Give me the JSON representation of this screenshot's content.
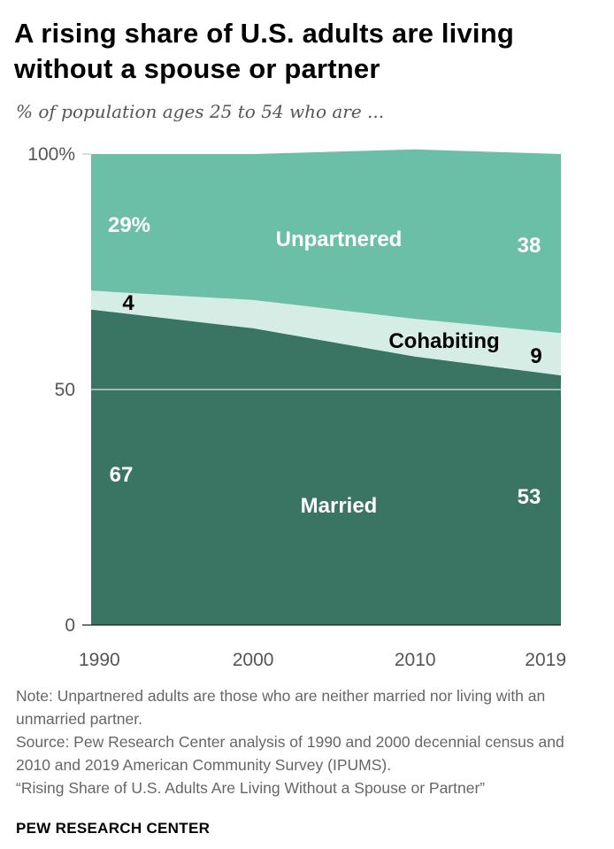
{
  "title": "A rising share of U.S. adults are living without a spouse or partner",
  "subtitle": "% of population  ages 25 to 54 who are ...",
  "colors": {
    "married": "#3a7563",
    "cohabiting": "#d5ede4",
    "unpartnered": "#6bbfa7",
    "axis_text": "#555555",
    "label_dark": "#000000",
    "label_light": "#ffffff"
  },
  "chart_data": {
    "type": "area",
    "stacked": true,
    "x": [
      1990,
      2000,
      2010,
      2019
    ],
    "x_tick_labels": [
      "1990",
      "2000",
      "2010",
      "2019"
    ],
    "y_ticks": [
      0,
      50,
      100
    ],
    "y_tick_labels": [
      "0",
      "50",
      "100%"
    ],
    "ylim": [
      0,
      100
    ],
    "series": [
      {
        "name": "Married",
        "values": [
          67,
          63,
          57,
          53
        ]
      },
      {
        "name": "Cohabiting",
        "values": [
          4,
          6,
          8,
          9
        ]
      },
      {
        "name": "Unpartnered",
        "values": [
          29,
          31,
          36,
          38
        ]
      }
    ],
    "labels": {
      "married_series": "Married",
      "cohabiting_series": "Cohabiting",
      "unpartnered_series": "Unpartnered",
      "married_1990": "67",
      "married_2019": "53",
      "cohabiting_1990": "4",
      "cohabiting_2019": "9",
      "unpartnered_1990": "29%",
      "unpartnered_2019": "38"
    }
  },
  "notes": {
    "note": "Note: Unpartnered  adults are those who are neither  married  nor living with an unmarried  partner.",
    "source": "Source: Pew Research Center analysis  of 1990 and  2000 decennial census and 2010 and 2019 American Community Survey (IPUMS).",
    "report": "“Rising Share  of U.S. Adults Are  Living Without  a Spouse or Partner”"
  },
  "brand": "PEW RESEARCH CENTER"
}
